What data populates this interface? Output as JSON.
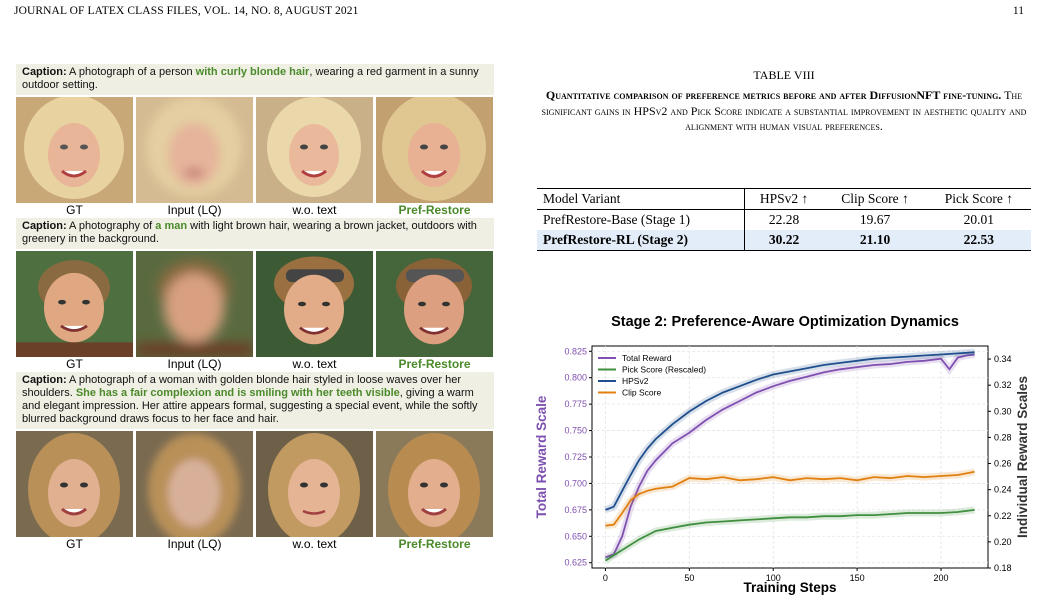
{
  "header": {
    "left": "JOURNAL OF LATEX CLASS FILES, VOL. 14, NO. 8, AUGUST 2021",
    "page": "11"
  },
  "figure": {
    "rows": [
      {
        "caption_label": "Caption:",
        "caption_pre": " A photograph of a person ",
        "caption_hl": "with curly blonde hair",
        "caption_post": ", wearing a red garment in a sunny outdoor setting."
      },
      {
        "caption_label": "Caption:",
        "caption_pre": " A photography of ",
        "caption_hl": "a man",
        "caption_post": " with light brown hair, wearing a brown jacket, outdoors with greenery in the background."
      },
      {
        "caption_label": "Caption:",
        "caption_pre": " A photograph of a woman with golden blonde hair styled in loose waves over her shoulders. ",
        "caption_hl": "She has a fair complexion and is smiling with her teeth visible",
        "caption_post": ", giving a warm and elegant impression. Her attire appears formal, suggesting a special event, while the softly blurred background draws focus to her face and hair."
      }
    ],
    "column_labels": [
      "GT",
      "Input (LQ)",
      "w.o. text",
      "Pref-Restore"
    ]
  },
  "table": {
    "title": "TABLE VIII",
    "caption_bold": "Quantitative comparison of preference metrics before and after DiffusionNFT fine-tuning.",
    "caption_rest": " The significant gains in HPSv2 and Pick Score indicate a substantial improvement in aesthetic quality and alignment with human visual preferences.",
    "headers": [
      "Model Variant",
      "HPSv2 ↑",
      "Clip Score ↑",
      "Pick Score ↑"
    ],
    "rows": [
      {
        "model": "PrefRestore-Base (Stage 1)",
        "hps": "22.28",
        "clip": "19.67",
        "pick": "20.01"
      },
      {
        "model": "PrefRestore-RL (Stage 2)",
        "hps": "30.22",
        "clip": "21.10",
        "pick": "22.53"
      }
    ]
  },
  "chart_data": {
    "type": "line",
    "title": "Stage 2: Preference-Aware Optimization Dynamics",
    "xlabel": "Training Steps",
    "ylabel": "Total Reward Scale",
    "ylabel_right": "Individual Reward Scales",
    "xlim": [
      -8,
      228
    ],
    "xticks": [
      0,
      50,
      100,
      150,
      200
    ],
    "ylim": [
      0.62,
      0.83
    ],
    "yticks": [
      0.625,
      0.65,
      0.675,
      0.7,
      0.725,
      0.75,
      0.775,
      0.8,
      0.825
    ],
    "ylim_right": [
      0.18,
      0.35
    ],
    "yticks_right": [
      0.18,
      0.2,
      0.22,
      0.24,
      0.26,
      0.28,
      0.3,
      0.32,
      0.34
    ],
    "legend": "top-left",
    "grid": true,
    "colors": {
      "total": "#8050b0",
      "pick": "#3f8f3f",
      "hps": "#1f4f8c",
      "clip": "#e08010"
    },
    "series": [
      {
        "name": "Total Reward",
        "axis": "left",
        "x": [
          0,
          5,
          10,
          15,
          20,
          25,
          30,
          40,
          50,
          60,
          70,
          80,
          90,
          100,
          110,
          120,
          130,
          140,
          150,
          160,
          170,
          180,
          190,
          200,
          205,
          210,
          215,
          220
        ],
        "values": [
          0.63,
          0.633,
          0.65,
          0.678,
          0.697,
          0.712,
          0.722,
          0.738,
          0.748,
          0.76,
          0.77,
          0.778,
          0.786,
          0.792,
          0.797,
          0.801,
          0.805,
          0.808,
          0.81,
          0.812,
          0.813,
          0.815,
          0.816,
          0.818,
          0.808,
          0.819,
          0.821,
          0.822
        ]
      },
      {
        "name": "Pick Score (Rescaled)",
        "axis": "left",
        "x": [
          0,
          10,
          20,
          30,
          40,
          50,
          60,
          70,
          80,
          90,
          100,
          110,
          120,
          130,
          140,
          150,
          160,
          170,
          180,
          190,
          200,
          210,
          220
        ],
        "values": [
          0.627,
          0.637,
          0.647,
          0.655,
          0.658,
          0.661,
          0.663,
          0.664,
          0.665,
          0.666,
          0.667,
          0.668,
          0.668,
          0.669,
          0.669,
          0.67,
          0.67,
          0.671,
          0.672,
          0.672,
          0.672,
          0.673,
          0.675
        ]
      },
      {
        "name": "HPSv2",
        "axis": "left",
        "x": [
          0,
          5,
          10,
          15,
          20,
          25,
          30,
          40,
          50,
          60,
          70,
          80,
          90,
          100,
          110,
          120,
          130,
          140,
          150,
          160,
          170,
          180,
          190,
          200,
          210,
          220
        ],
        "values": [
          0.675,
          0.678,
          0.693,
          0.708,
          0.722,
          0.733,
          0.742,
          0.756,
          0.768,
          0.778,
          0.786,
          0.792,
          0.798,
          0.803,
          0.806,
          0.809,
          0.812,
          0.814,
          0.816,
          0.818,
          0.819,
          0.82,
          0.821,
          0.822,
          0.823,
          0.824
        ]
      },
      {
        "name": "Clip Score",
        "axis": "left",
        "x": [
          0,
          5,
          10,
          15,
          20,
          25,
          30,
          40,
          50,
          60,
          70,
          80,
          90,
          100,
          110,
          120,
          130,
          140,
          150,
          160,
          170,
          180,
          190,
          200,
          210,
          220
        ],
        "values": [
          0.66,
          0.661,
          0.672,
          0.684,
          0.69,
          0.693,
          0.695,
          0.697,
          0.705,
          0.704,
          0.706,
          0.703,
          0.704,
          0.706,
          0.703,
          0.705,
          0.704,
          0.705,
          0.703,
          0.706,
          0.705,
          0.707,
          0.706,
          0.707,
          0.708,
          0.711
        ]
      }
    ]
  }
}
